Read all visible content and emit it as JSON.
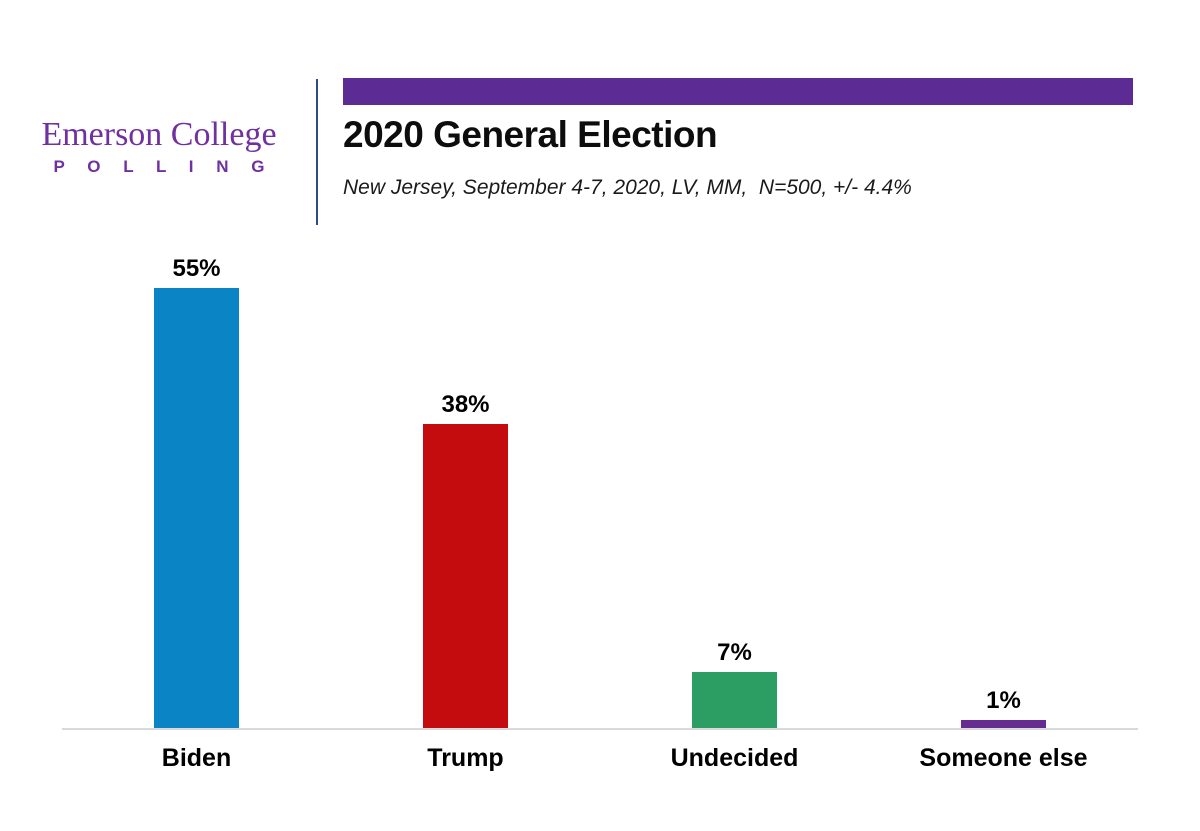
{
  "logo": {
    "line1": "Emerson College",
    "line2": "P O L L I N G"
  },
  "header": {
    "title": "2020 General Election",
    "subtitle": "New Jersey, September 4-7, 2020, LV, MM,  N=500, +/- 4.4%"
  },
  "colors": {
    "accent_bar_purple": "#5c2b94",
    "logo_purple": "#7030a0",
    "divider_blue": "#2f4c8a",
    "baseline_gray": "#d9d9d9",
    "title_black": "#0d0d0d"
  },
  "chart_data": {
    "type": "bar",
    "title": "2020 General Election",
    "subtitle": "New Jersey, September 4-7, 2020, LV, MM, N=500, +/- 4.4%",
    "categories": [
      "Biden",
      "Trump",
      "Undecided",
      "Someone else"
    ],
    "values": [
      55,
      38,
      7,
      1
    ],
    "value_labels": [
      "55%",
      "38%",
      "7%",
      "1%"
    ],
    "bar_colors": [
      "#0b84c5",
      "#c40b0e",
      "#2d9e63",
      "#662d91"
    ],
    "xlabel": "",
    "ylabel": "",
    "ylim": [
      0,
      62.5
    ],
    "grid": false,
    "legend": false,
    "data_label_position": "above-bars",
    "axis_line": "bottom-only"
  }
}
